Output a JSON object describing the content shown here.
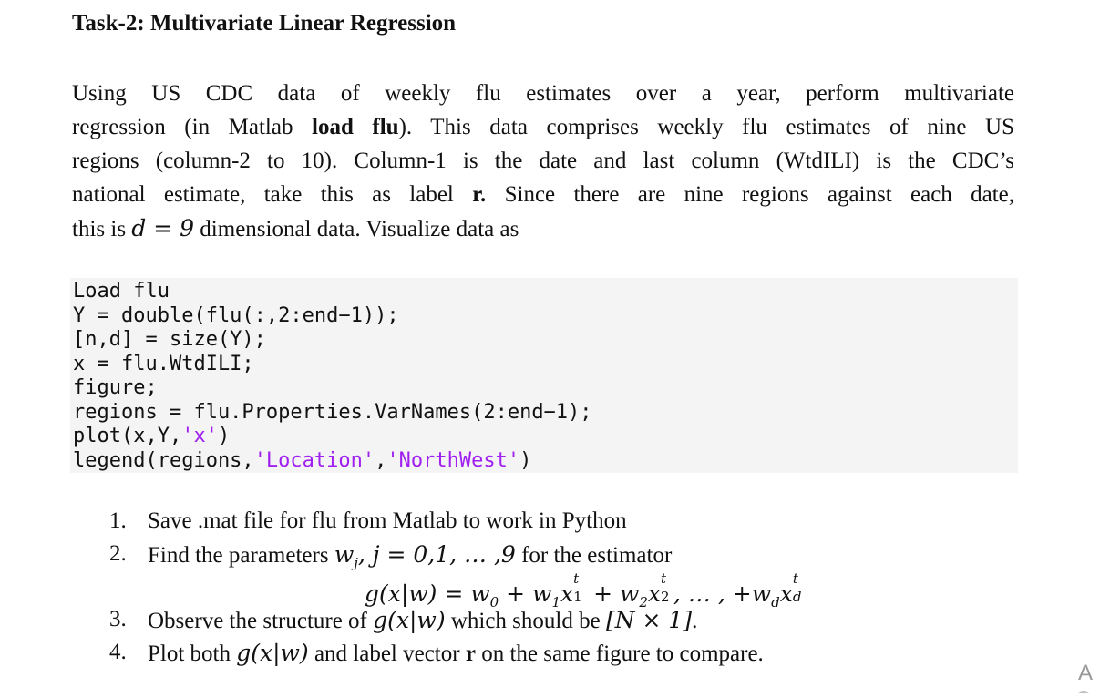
{
  "heading": "Task-2: Multivariate Linear Regression",
  "paragraph": {
    "l1": "Using US CDC data of weekly flu estimates over a year, perform multivariate",
    "l2_a": "regression (in Matlab ",
    "l2_b": "load flu",
    "l2_c": "). This data comprises weekly flu estimates of nine US",
    "l3": "regions (column-2 to 10). Column-1 is the date and last column (WtdILI) is the CDC’s",
    "l4_a": "national estimate, take this as label ",
    "l4_b": "r.",
    "l4_c": " Since there are nine regions against each date,",
    "l5_a": "this is ",
    "l5_math": "d = 9",
    "l5_b": " dimensional data. Visualize data as"
  },
  "code": {
    "line1": "Load flu",
    "line2": "Y = double(flu(:,2:end−1));",
    "line3": "[n,d] = size(Y);",
    "line4": "x = flu.WtdILI;",
    "line5": "figure;",
    "line6": "regions = flu.Properties.VarNames(2:end−1);",
    "line7_a": "plot(x,Y,",
    "line7_str": "'x'",
    "line7_b": ")",
    "line8_a": "legend(regions,",
    "line8_str1": "'Location'",
    "line8_mid": ",",
    "line8_str2": "'NorthWest'",
    "line8_b": ")"
  },
  "steps": [
    {
      "num": "1.",
      "text": "Save .mat file for flu from Matlab to work in Python"
    },
    {
      "num": "2.",
      "text_a": "Find the parameters ",
      "math": "w",
      "sub": "j",
      "math2": ", j = 0,1, … ,9",
      "text_b": " for the estimator"
    },
    {
      "num": "3.",
      "text_a": "Observe the structure of ",
      "math": "g(x|w)",
      "text_b": " which should be ",
      "math2": "[N × 1]",
      "text_c": "."
    },
    {
      "num": "4.",
      "text_a": "Plot both ",
      "math": "g(x|w)",
      "text_b": " and label vector ",
      "bold": "r",
      "text_c": " on the same figure to compare."
    }
  ],
  "equation": {
    "lhs": "g(x|w) = w",
    "w0_sub": "0",
    "plus1": " +  w",
    "w1_sub": "1",
    "x1": "x",
    "x1_sup": "t",
    "x1_sub": "1",
    "plus2": " + w",
    "w2_sub": "2",
    "x2": "x",
    "x2_sup": "t",
    "x2_sub": "2",
    "dots": ", … , +w",
    "wd_sub": "d",
    "xd": "x",
    "xd_sup": "t",
    "xd_sub": "d"
  },
  "corner_text": "A"
}
